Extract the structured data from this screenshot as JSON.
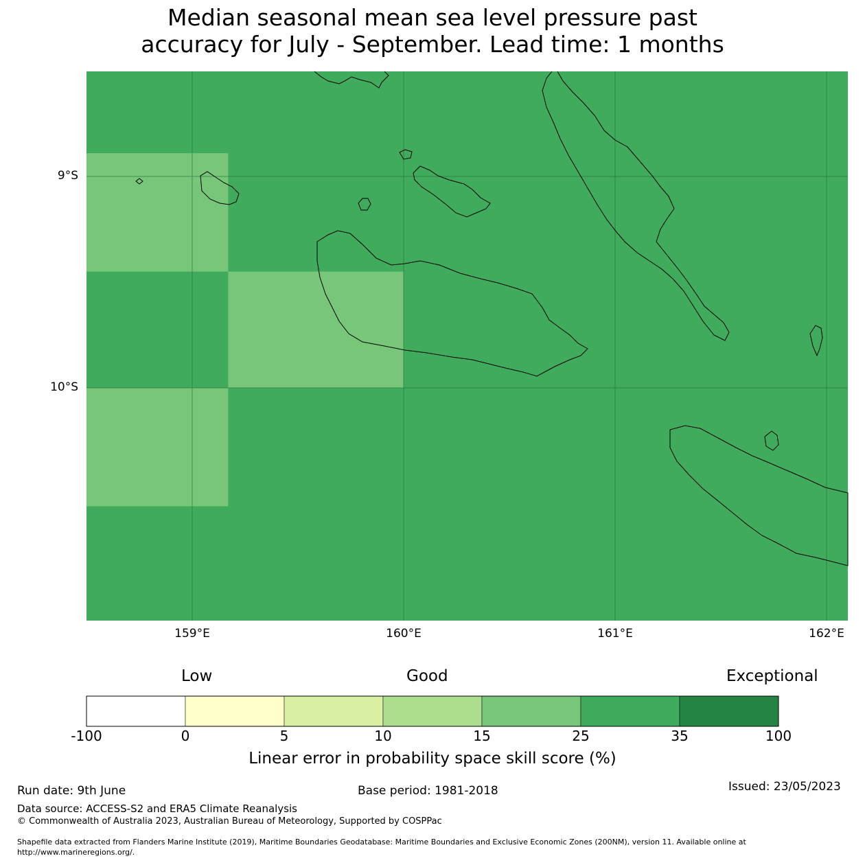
{
  "title_line1": "Median seasonal mean sea level pressure past",
  "title_line2": "accuracy for July - September. Lead time: 1 months",
  "map": {
    "lat_labels": [
      "9°S",
      "10°S"
    ],
    "lon_labels": [
      "159°E",
      "160°E",
      "161°E",
      "162°E"
    ],
    "background_color": "#41ab5d",
    "cells": [
      {
        "lon_min": 158.5,
        "lon_max": 159.17,
        "lat_min": -9.45,
        "lat_max": -8.89,
        "category": "15-25",
        "color": "#78c679"
      },
      {
        "lon_min": 159.17,
        "lon_max": 160.0,
        "lat_min": -10.0,
        "lat_max": -9.45,
        "category": "15-25",
        "color": "#78c679"
      },
      {
        "lon_min": 158.5,
        "lon_max": 159.17,
        "lat_min": -10.56,
        "lat_max": -10.0,
        "category": "15-25",
        "color": "#78c679"
      }
    ]
  },
  "colorbar": {
    "categories": [
      "Low",
      "Good",
      "Exceptional"
    ],
    "ticks": [
      "-100",
      "0",
      "5",
      "10",
      "15",
      "25",
      "35",
      "100"
    ],
    "colors": [
      "#ffffff",
      "#ffffcc",
      "#d9f0a3",
      "#addd8e",
      "#78c679",
      "#41ab5d",
      "#238443"
    ],
    "label": "Linear error in probability space skill score (%)"
  },
  "footer": {
    "run_date": "Run date: 9th June",
    "base_period": "Base period: 1981-2018",
    "issued": "Issued: 23/05/2023",
    "data_source": "Data source: ACCESS-S2 and ERA5 Climate Reanalysis",
    "copyright": "© Commonwealth of Australia 2023, Australian Bureau of Meteorology, Supported by COSPPac",
    "shapefile_line1": "Shapefile data extracted from Flanders Marine Institute (2019), Maritime Boundaries Geodatabase: Maritime Boundaries and Exclusive Economic Zones (200NM), version 11. Available online at",
    "shapefile_line2": "http://www.marineregions.org/."
  }
}
